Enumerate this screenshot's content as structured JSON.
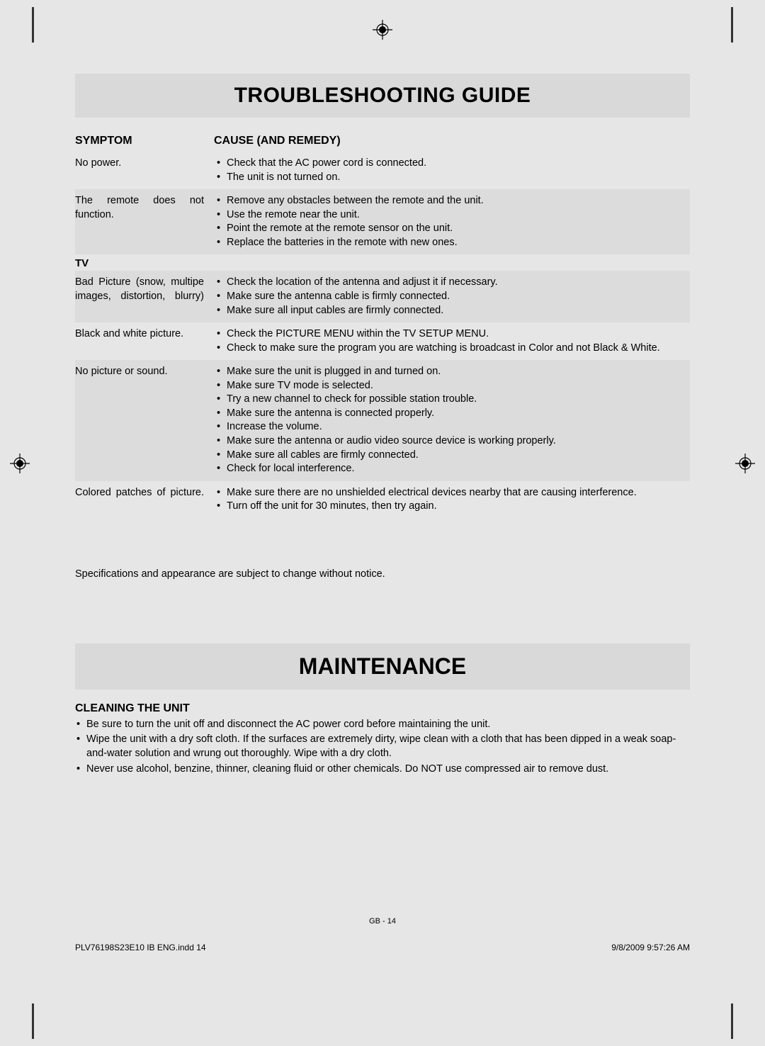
{
  "title": "TROUBLESHOOTING GUIDE",
  "headers": {
    "symptom": "SYMPTOM",
    "cause": "CAUSE (AND REMEDY)"
  },
  "rows": [
    {
      "symptom": "No power.",
      "remedies": [
        "Check that the AC power cord is connected.",
        "The unit is not turned on."
      ],
      "alt": false
    },
    {
      "symptom": "The remote does not function.",
      "remedies": [
        "Remove any obstacles between the remote and the unit.",
        "Use the remote near the unit.",
        "Point the remote at the remote sensor on the unit.",
        "Replace the batteries in the remote with new ones."
      ],
      "alt": true,
      "justify": true
    }
  ],
  "section_label": "TV",
  "tv_rows": [
    {
      "symptom": "Bad Picture (snow, multipe images, distortion, blurry)",
      "remedies": [
        "Check the location of the antenna and adjust it if necessary.",
        "Make sure the antenna cable is firmly connected.",
        "Make sure all input cables are firmly connected."
      ],
      "alt": true,
      "justify": true
    },
    {
      "symptom": "Black and white picture.",
      "remedies": [
        "Check the PICTURE MENU within the TV SETUP MENU.",
        "Check to make sure the program you are watching is broadcast in Color and not Black & White."
      ],
      "alt": false
    },
    {
      "symptom": "No picture or sound.",
      "remedies": [
        "Make sure the unit is plugged in and turned on.",
        "Make sure TV mode is selected.",
        "Try a new channel to check for possible station trouble.",
        "Make sure the antenna is connected properly.",
        "Increase the volume.",
        "Make sure the antenna or audio video source device is working properly.",
        "Make sure all cables are firmly connected.",
        "Check for local interference."
      ],
      "alt": true
    },
    {
      "symptom": "Colored patches of picture.",
      "remedies": [
        "Make sure there are no unshielded electrical devices nearby that are causing interference.",
        "Turn off the unit for 30 minutes, then try again."
      ],
      "alt": false,
      "justify": true,
      "justify_remedy": true
    }
  ],
  "spec_note": "Specifications and appearance are subject to change without notice.",
  "maintenance_title": "MAINTENANCE",
  "cleaning_head": "CLEANING THE UNIT",
  "cleaning_items": [
    "Be sure to turn the unit off and disconnect the AC power cord before maintaining the unit.",
    "Wipe the unit with a dry soft cloth. If the surfaces are extremely dirty, wipe clean with a cloth that has been dipped in a weak soap-and-water solution and wrung out thoroughly. Wipe with a dry cloth.",
    "Never use alcohol, benzine, thinner, cleaning fluid or other chemicals. Do NOT use compressed air to remove dust."
  ],
  "page_number": "GB - 14",
  "footer_left": "PLV76198S23E10 IB ENG.indd   14",
  "footer_right": "9/8/2009   9:57:26 AM"
}
